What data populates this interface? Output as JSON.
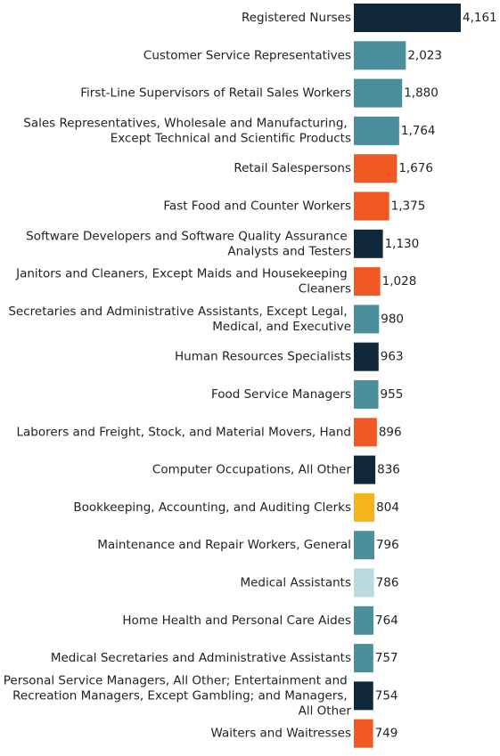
{
  "chart_data": {
    "type": "bar",
    "orientation": "horizontal",
    "categories": [
      "Registered Nurses",
      "Customer Service Representatives",
      "First-Line Supervisors of Retail Sales Workers",
      "Sales Representatives, Wholesale and Manufacturing, Except Technical and Scientific Products",
      "Retail Salespersons",
      "Fast Food and Counter Workers",
      "Software Developers and Software Quality Assurance Analysts and Testers",
      "Janitors and Cleaners, Except Maids and Housekeeping Cleaners",
      "Secretaries and Administrative Assistants, Except Legal, Medical, and Executive",
      "Human Resources Specialists",
      "Food Service Managers",
      "Laborers and Freight, Stock, and Material Movers, Hand",
      "Computer Occupations, All Other",
      "Bookkeeping, Accounting, and Auditing Clerks",
      "Maintenance and Repair Workers, General",
      "Medical Assistants",
      "Home Health and Personal Care Aides",
      "Medical Secretaries and Administrative Assistants",
      "Personal Service Managers, All Other; Entertainment and Recreation Managers, Except Gambling; and Managers, All Other",
      "Waiters and Waitresses"
    ],
    "values": [
      4161,
      2023,
      1880,
      1764,
      1676,
      1375,
      1130,
      1028,
      980,
      963,
      955,
      896,
      836,
      804,
      796,
      786,
      764,
      757,
      754,
      749
    ],
    "value_labels": [
      "4,161",
      "2,023",
      "1,880",
      "1,764",
      "1,676",
      "1,375",
      "1,130",
      "1,028",
      "980",
      "963",
      "955",
      "896",
      "836",
      "804",
      "796",
      "786",
      "764",
      "757",
      "754",
      "749"
    ],
    "colors": [
      "#10283a",
      "#4b8e9c",
      "#4b8e9c",
      "#4b8e9c",
      "#f05a22",
      "#f05a22",
      "#10283a",
      "#f05a22",
      "#4b8e9c",
      "#10283a",
      "#4b8e9c",
      "#f05a22",
      "#10283a",
      "#f5b41c",
      "#4b8e9c",
      "#b9dade",
      "#4b8e9c",
      "#4b8e9c",
      "#10283a",
      "#f05a22"
    ]
  }
}
